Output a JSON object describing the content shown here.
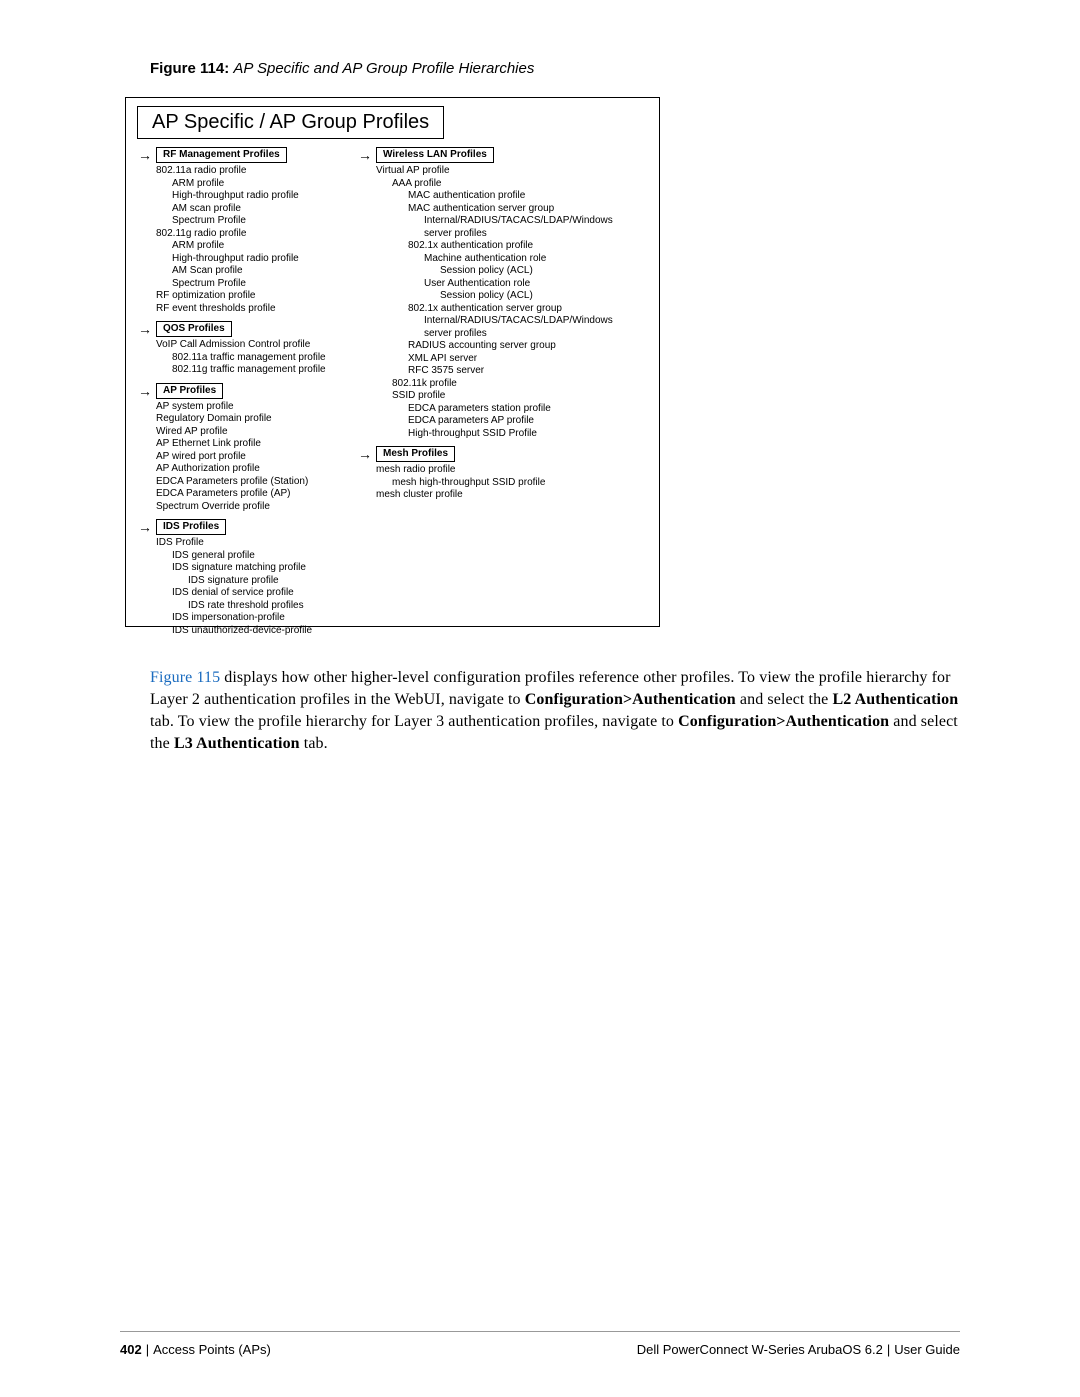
{
  "figure": {
    "label": "Figure 114:",
    "title": "AP Specific and AP Group Profile Hierarchies"
  },
  "diagram": {
    "title": "AP Specific / AP Group Profiles",
    "left": [
      {
        "header": "RF Management Profiles",
        "items": [
          {
            "t": "802.11a radio profile",
            "d": 0
          },
          {
            "t": "ARM profile",
            "d": 1
          },
          {
            "t": "High-throughput radio profile",
            "d": 1
          },
          {
            "t": "AM scan profile",
            "d": 1
          },
          {
            "t": "Spectrum Profile",
            "d": 1
          },
          {
            "t": "802.11g radio profile",
            "d": 0
          },
          {
            "t": "ARM profile",
            "d": 1
          },
          {
            "t": "High-throughput radio profile",
            "d": 1
          },
          {
            "t": "AM Scan profile",
            "d": 1
          },
          {
            "t": "Spectrum Profile",
            "d": 1
          },
          {
            "t": "RF optimization profile",
            "d": 0
          },
          {
            "t": "RF event thresholds profile",
            "d": 0
          }
        ]
      },
      {
        "header": "QOS Profiles",
        "items": [
          {
            "t": "VoIP Call Admission Control profile",
            "d": 0
          },
          {
            "t": "802.11a traffic management profile",
            "d": 1
          },
          {
            "t": "802.11g traffic management profile",
            "d": 1
          }
        ]
      },
      {
        "header": "AP Profiles",
        "items": [
          {
            "t": "AP system profile",
            "d": 0
          },
          {
            "t": "Regulatory Domain profile",
            "d": 0
          },
          {
            "t": "Wired AP profile",
            "d": 0
          },
          {
            "t": "AP Ethernet Link profile",
            "d": 0
          },
          {
            "t": "AP wired port profile",
            "d": 0
          },
          {
            "t": "AP Authorization profile",
            "d": 0
          },
          {
            "t": "EDCA Parameters profile (Station)",
            "d": 0
          },
          {
            "t": "EDCA Parameters profile (AP)",
            "d": 0
          },
          {
            "t": "Spectrum Override profile",
            "d": 0
          }
        ]
      },
      {
        "header": "IDS Profiles",
        "items": [
          {
            "t": "IDS Profile",
            "d": 0
          },
          {
            "t": "IDS general profile",
            "d": 1
          },
          {
            "t": "IDS signature matching profile",
            "d": 1
          },
          {
            "t": "IDS signature profile",
            "d": 2
          },
          {
            "t": "IDS denial of service profile",
            "d": 1
          },
          {
            "t": "IDS rate threshold profiles",
            "d": 2
          },
          {
            "t": "IDS impersonation-profile",
            "d": 1
          },
          {
            "t": "IDS unauthorized-device-profile",
            "d": 1
          }
        ]
      }
    ],
    "right": [
      {
        "header": "Wireless LAN Profiles",
        "items": [
          {
            "t": "Virtual AP profile",
            "d": 0
          },
          {
            "t": "AAA profile",
            "d": 1
          },
          {
            "t": "MAC authentication profile",
            "d": 2
          },
          {
            "t": "MAC authentication server group",
            "d": 2
          },
          {
            "t": "Internal/RADIUS/TACACS/LDAP/Windows server profiles",
            "d": 3
          },
          {
            "t": "802.1x authentication profile",
            "d": 2
          },
          {
            "t": "Machine authentication role",
            "d": 3
          },
          {
            "t": "Session policy (ACL)",
            "d": 4
          },
          {
            "t": "User Authentication role",
            "d": 3
          },
          {
            "t": "Session policy (ACL)",
            "d": 4
          },
          {
            "t": "802.1x authentication server group",
            "d": 2
          },
          {
            "t": "Internal/RADIUS/TACACS/LDAP/Windows server profiles",
            "d": 3
          },
          {
            "t": "RADIUS accounting server group",
            "d": 2
          },
          {
            "t": "XML API server",
            "d": 2
          },
          {
            "t": "RFC 3575 server",
            "d": 2
          },
          {
            "t": "802.11k profile",
            "d": 1
          },
          {
            "t": "SSID profile",
            "d": 1
          },
          {
            "t": "EDCA parameters station profile",
            "d": 2
          },
          {
            "t": "EDCA parameters AP profile",
            "d": 2
          },
          {
            "t": "High-throughput SSID Profile",
            "d": 2
          }
        ]
      },
      {
        "header": "Mesh Profiles",
        "items": [
          {
            "t": "mesh radio profile",
            "d": 0
          },
          {
            "t": "mesh high-throughput SSID profile",
            "d": 1
          },
          {
            "t": "mesh cluster profile",
            "d": 0
          }
        ]
      }
    ]
  },
  "body": {
    "link": "Figure 115",
    "seg1": " displays how other higher-level configuration profiles reference other profiles. To view the profile hierarchy for Layer 2 authentication profiles in the WebUI, navigate to ",
    "b1": "Configuration>Authentication",
    "seg2": " and select the ",
    "b2": "L2 Authentication",
    "seg3": " tab. To view the profile hierarchy for Layer 3 authentication profiles, navigate to ",
    "b3": "Configuration>Authentication",
    "seg4": " and select the ",
    "b4": "L3 Authentication",
    "seg5": " tab."
  },
  "footer": {
    "page": "402",
    "section": "Access Points (APs)",
    "product": "Dell PowerConnect W-Series ArubaOS 6.2",
    "doc": "User Guide"
  }
}
